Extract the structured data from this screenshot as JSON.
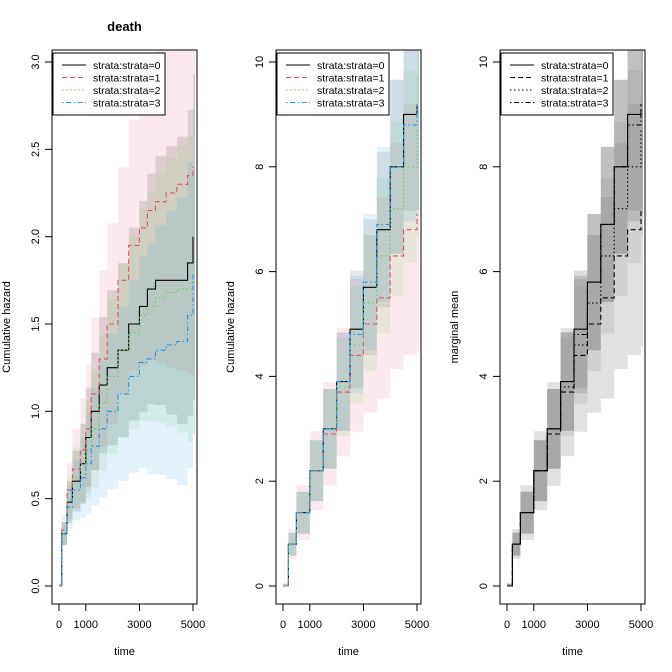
{
  "chart_data": [
    {
      "type": "line",
      "title": "death",
      "xlabel": "time",
      "ylabel": "Cumulative hazard",
      "xlim": [
        0,
        5000
      ],
      "ylim": [
        0,
        3.0
      ],
      "xticks": [
        0,
        1000,
        3000,
        5000
      ],
      "xtick_labels": [
        "0",
        "1000",
        "3000",
        "5000"
      ],
      "yticks": [
        0.0,
        0.5,
        1.0,
        1.5,
        2.0,
        2.5,
        3.0
      ],
      "ytick_labels": [
        "0.0",
        "0.5",
        "1.0",
        "1.5",
        "2.0",
        "2.5",
        "3.0"
      ],
      "legend_position": "top-left",
      "grid": false,
      "confidence_bands": true,
      "series": [
        {
          "name": "strata:strata=0",
          "color": "#000000",
          "dash": "solid",
          "x": [
            0,
            100,
            300,
            500,
            800,
            1000,
            1200,
            1500,
            1800,
            2200,
            2600,
            3000,
            3300,
            3600,
            4000,
            4400,
            4800,
            5000
          ],
          "y": [
            0,
            0.3,
            0.48,
            0.6,
            0.7,
            0.85,
            1.0,
            1.15,
            1.25,
            1.35,
            1.5,
            1.6,
            1.7,
            1.75,
            1.75,
            1.75,
            1.85,
            2.0
          ]
        },
        {
          "name": "strata:strata=1",
          "color": "#DF536B",
          "dash": "dashed",
          "x": [
            0,
            100,
            300,
            500,
            800,
            1000,
            1200,
            1500,
            1800,
            2200,
            2600,
            3000,
            3300,
            3600,
            4000,
            4400,
            4800,
            5000
          ],
          "y": [
            0,
            0.32,
            0.55,
            0.67,
            0.78,
            0.9,
            1.1,
            1.3,
            1.5,
            1.75,
            1.95,
            2.05,
            2.15,
            2.2,
            2.25,
            2.3,
            2.35,
            2.4
          ]
        },
        {
          "name": "strata:strata=2",
          "color": "#61D04F",
          "dash": "dotted",
          "x": [
            0,
            100,
            300,
            500,
            800,
            1000,
            1200,
            1500,
            1800,
            2200,
            2600,
            3000,
            3300,
            3600,
            4000,
            4400,
            4800,
            5000
          ],
          "y": [
            0,
            0.3,
            0.5,
            0.62,
            0.7,
            0.78,
            0.9,
            1.05,
            1.2,
            1.35,
            1.45,
            1.55,
            1.6,
            1.65,
            1.68,
            1.7,
            1.7,
            1.8
          ]
        },
        {
          "name": "strata:strata=3",
          "color": "#2297E6",
          "dash": "dotdash",
          "x": [
            0,
            100,
            300,
            500,
            800,
            1000,
            1200,
            1500,
            1800,
            2200,
            2600,
            3000,
            3300,
            3600,
            4000,
            4400,
            4800,
            5000
          ],
          "y": [
            0,
            0.3,
            0.45,
            0.55,
            0.62,
            0.7,
            0.8,
            0.9,
            1.0,
            1.1,
            1.2,
            1.28,
            1.3,
            1.35,
            1.38,
            1.4,
            1.55,
            1.8
          ]
        }
      ]
    },
    {
      "type": "line",
      "title": "",
      "xlabel": "time",
      "ylabel": "Cumulative hazard",
      "xlim": [
        0,
        5000
      ],
      "ylim": [
        0,
        10
      ],
      "xticks": [
        0,
        1000,
        3000,
        5000
      ],
      "xtick_labels": [
        "0",
        "1000",
        "3000",
        "5000"
      ],
      "yticks": [
        0,
        2,
        4,
        6,
        8,
        10
      ],
      "ytick_labels": [
        "0",
        "2",
        "4",
        "6",
        "8",
        "10"
      ],
      "legend_position": "top-left",
      "grid": false,
      "confidence_bands": true,
      "series": [
        {
          "name": "strata:strata=0",
          "color": "#000000",
          "dash": "solid",
          "x": [
            0,
            200,
            500,
            1000,
            1500,
            2000,
            2500,
            3000,
            3500,
            4000,
            4500,
            5000
          ],
          "y": [
            0,
            0.8,
            1.4,
            2.2,
            3.0,
            3.9,
            4.9,
            5.7,
            6.8,
            8.0,
            9.0,
            9.2
          ]
        },
        {
          "name": "strata:strata=1",
          "color": "#DF536B",
          "dash": "dashed",
          "x": [
            0,
            200,
            500,
            1000,
            1500,
            2000,
            2500,
            3000,
            3500,
            4000,
            4500,
            5000
          ],
          "y": [
            0,
            0.8,
            1.4,
            2.2,
            2.9,
            3.7,
            4.4,
            5.0,
            5.5,
            6.3,
            6.8,
            7.1
          ]
        },
        {
          "name": "strata:strata=2",
          "color": "#61D04F",
          "dash": "dotted",
          "x": [
            0,
            200,
            500,
            1000,
            1500,
            2000,
            2500,
            3000,
            3500,
            4000,
            4500,
            5000
          ],
          "y": [
            0,
            0.8,
            1.4,
            2.2,
            3.0,
            3.8,
            4.6,
            5.4,
            6.3,
            7.2,
            8.0,
            8.7
          ]
        },
        {
          "name": "strata:strata=3",
          "color": "#2297E6",
          "dash": "dotdash",
          "x": [
            0,
            200,
            500,
            1000,
            1500,
            2000,
            2500,
            3000,
            3500,
            4000,
            4500,
            5000
          ],
          "y": [
            0,
            0.8,
            1.4,
            2.2,
            3.0,
            3.9,
            4.8,
            5.8,
            6.9,
            8.0,
            8.8,
            9.2
          ]
        }
      ]
    },
    {
      "type": "line",
      "title": "",
      "xlabel": "time",
      "ylabel": "marginal mean",
      "xlim": [
        0,
        5000
      ],
      "ylim": [
        0,
        10
      ],
      "xticks": [
        0,
        1000,
        3000,
        5000
      ],
      "xtick_labels": [
        "0",
        "1000",
        "3000",
        "5000"
      ],
      "yticks": [
        0,
        2,
        4,
        6,
        8,
        10
      ],
      "ytick_labels": [
        "0",
        "2",
        "4",
        "6",
        "8",
        "10"
      ],
      "legend_position": "top-left",
      "grid": false,
      "confidence_bands": true,
      "series": [
        {
          "name": "strata:strata=0",
          "color": "#000000",
          "dash": "solid",
          "x": [
            0,
            200,
            500,
            1000,
            1500,
            2000,
            2500,
            3000,
            3500,
            4000,
            4500,
            5000
          ],
          "y": [
            0,
            0.8,
            1.4,
            2.2,
            3.0,
            3.9,
            4.9,
            5.8,
            6.9,
            8.0,
            9.0,
            9.1
          ]
        },
        {
          "name": "strata:strata=1",
          "color": "#000000",
          "dash": "dashed",
          "x": [
            0,
            200,
            500,
            1000,
            1500,
            2000,
            2500,
            3000,
            3500,
            4000,
            4500,
            5000
          ],
          "y": [
            0,
            0.8,
            1.4,
            2.2,
            2.9,
            3.7,
            4.4,
            5.0,
            5.5,
            6.3,
            6.8,
            7.2
          ]
        },
        {
          "name": "strata:strata=2",
          "color": "#000000",
          "dash": "dotted",
          "x": [
            0,
            200,
            500,
            1000,
            1500,
            2000,
            2500,
            3000,
            3500,
            4000,
            4500,
            5000
          ],
          "y": [
            0,
            0.8,
            1.4,
            2.2,
            3.0,
            3.8,
            4.6,
            5.4,
            6.3,
            7.2,
            8.0,
            8.7
          ]
        },
        {
          "name": "strata:strata=3",
          "color": "#000000",
          "dash": "dotdash",
          "x": [
            0,
            200,
            500,
            1000,
            1500,
            2000,
            2500,
            3000,
            3500,
            4000,
            4500,
            5000
          ],
          "y": [
            0,
            0.8,
            1.4,
            2.2,
            3.0,
            3.9,
            4.8,
            5.8,
            6.9,
            8.0,
            8.8,
            9.2
          ]
        }
      ]
    }
  ]
}
